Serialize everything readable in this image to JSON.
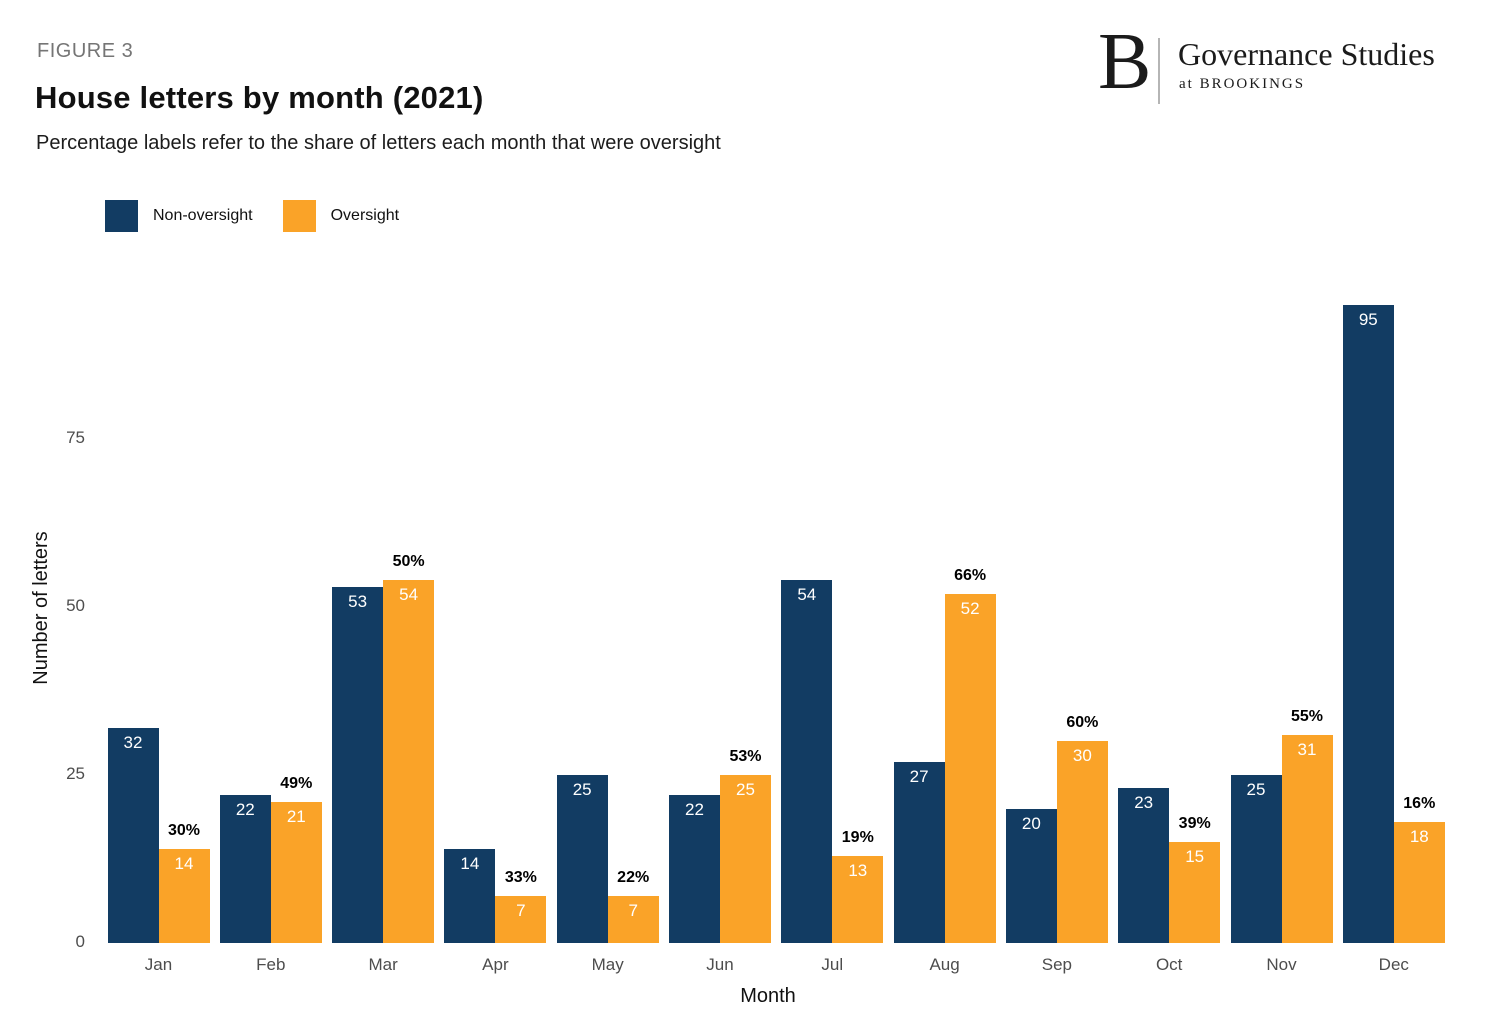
{
  "header": {
    "figure_label": "FIGURE 3",
    "title": "House letters by month (2021)",
    "subtitle": "Percentage labels refer to the share of letters each month that were oversight"
  },
  "logo": {
    "letter": "B",
    "org": "Governance Studies",
    "suborg": "at BROOKINGS"
  },
  "legend": {
    "items": [
      {
        "label": "Non-oversight",
        "color": "#123C63"
      },
      {
        "label": "Oversight",
        "color": "#FAA328"
      }
    ]
  },
  "chart_data": {
    "type": "bar",
    "title": "House letters by month (2021)",
    "subtitle": "Percentage labels refer to the share of letters each month that were oversight",
    "categories": [
      "Jan",
      "Feb",
      "Mar",
      "Apr",
      "May",
      "Jun",
      "Jul",
      "Aug",
      "Sep",
      "Oct",
      "Nov",
      "Dec"
    ],
    "series": [
      {
        "name": "Non-oversight",
        "color": "#123C63",
        "values": [
          32,
          22,
          53,
          14,
          25,
          22,
          54,
          27,
          20,
          23,
          25,
          95
        ]
      },
      {
        "name": "Oversight",
        "color": "#FAA328",
        "values": [
          14,
          21,
          54,
          7,
          7,
          25,
          13,
          52,
          30,
          15,
          31,
          18
        ]
      }
    ],
    "pct_labels": [
      "30%",
      "49%",
      "50%",
      "33%",
      "22%",
      "53%",
      "19%",
      "66%",
      "60%",
      "39%",
      "55%",
      "16%"
    ],
    "xlabel": "Month",
    "ylabel": "Number of letters",
    "yticks": [
      0,
      25,
      50,
      75
    ],
    "ylim": [
      0,
      100
    ],
    "grid": false,
    "legend_position": "top-left",
    "value_labels": "inside-top-white",
    "pct_label_position": "above-oversight-bar"
  },
  "colors": {
    "non_oversight": "#123C63",
    "oversight": "#FAA328",
    "tick_text": "#4D4D4D",
    "figure_label_text": "#757575"
  }
}
